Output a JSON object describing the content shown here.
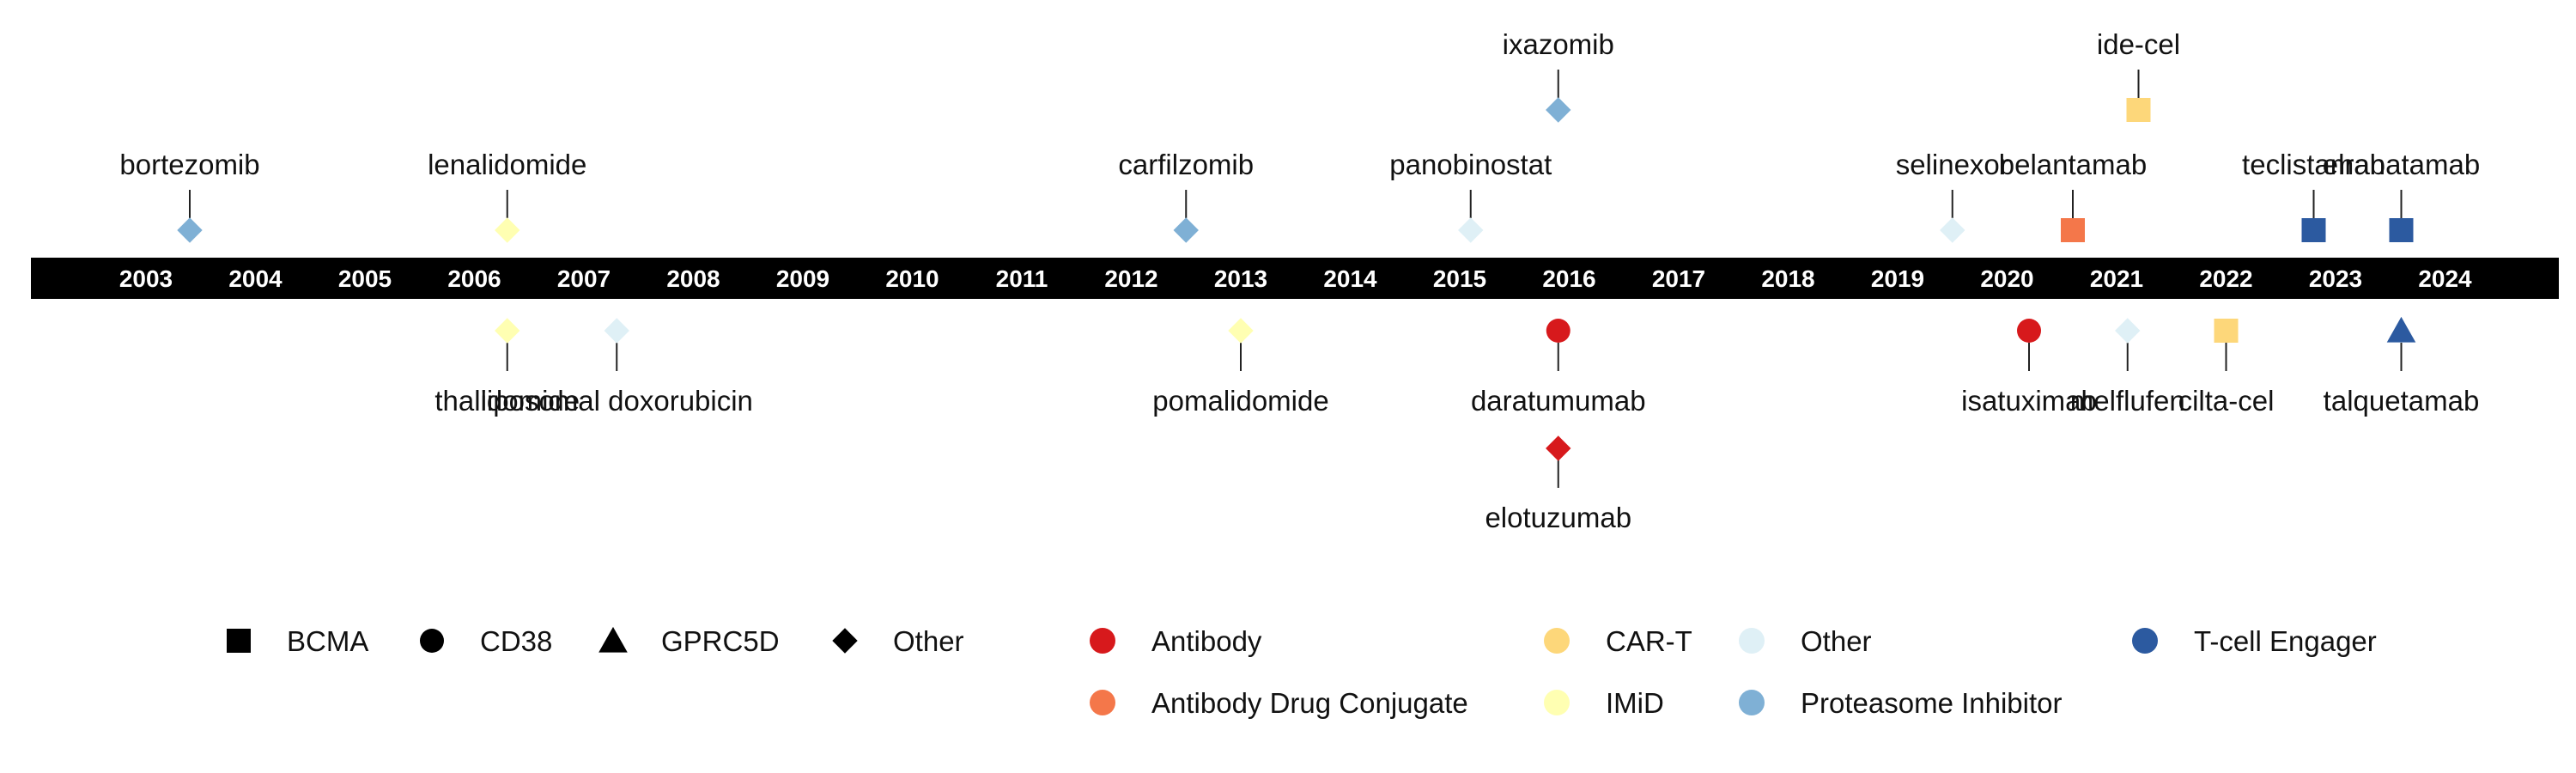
{
  "years": [
    "2003",
    "2004",
    "2005",
    "2006",
    "2007",
    "2008",
    "2009",
    "2010",
    "2011",
    "2012",
    "2013",
    "2014",
    "2015",
    "2016",
    "2017",
    "2018",
    "2019",
    "2020",
    "2021",
    "2022",
    "2023",
    "2024"
  ],
  "axis": {
    "start_year": 2003,
    "end_year": 2024
  },
  "colors": {
    "Antibody": "#d7191c",
    "Antibody Drug Conjugate": "#f4774a",
    "CAR-T": "#fdd77a",
    "IMiD": "#ffffb2",
    "Other": "#dff0f6",
    "Proteasome Inhibitor": "#7fb0d5",
    "T-cell Engager": "#2c5aa0"
  },
  "drugs": [
    {
      "name": "bortezomib",
      "date": 2003.4,
      "side": "above",
      "tier": 1,
      "shape": "diamond",
      "class": "Proteasome Inhibitor"
    },
    {
      "name": "lenalidomide",
      "date": 2006.3,
      "side": "above",
      "tier": 1,
      "shape": "diamond",
      "class": "IMiD"
    },
    {
      "name": "carfilzomib",
      "date": 2012.5,
      "side": "above",
      "tier": 1,
      "shape": "diamond",
      "class": "Proteasome Inhibitor"
    },
    {
      "name": "panobinostat",
      "date": 2015.1,
      "side": "above",
      "tier": 1,
      "shape": "diamond",
      "class": "Other"
    },
    {
      "name": "ixazomib",
      "date": 2015.9,
      "side": "above",
      "tier": 2,
      "shape": "diamond",
      "class": "Proteasome Inhibitor"
    },
    {
      "name": "selinexor",
      "date": 2019.5,
      "side": "above",
      "tier": 1,
      "shape": "diamond",
      "class": "Other"
    },
    {
      "name": "belantamab",
      "date": 2020.6,
      "side": "above",
      "tier": 1,
      "shape": "square",
      "class": "Antibody Drug Conjugate"
    },
    {
      "name": "ide-cel",
      "date": 2021.2,
      "side": "above",
      "tier": 2,
      "shape": "square",
      "class": "CAR-T"
    },
    {
      "name": "teclistamab",
      "date": 2022.8,
      "side": "above",
      "tier": 1,
      "shape": "square",
      "class": "T-cell Engager"
    },
    {
      "name": "elranatamab",
      "date": 2023.6,
      "side": "above",
      "tier": 1,
      "shape": "square",
      "class": "T-cell Engager"
    },
    {
      "name": "thalidomide",
      "date": 2006.3,
      "side": "below",
      "tier": 1,
      "shape": "diamond",
      "class": "IMiD"
    },
    {
      "name": "liposomal doxorubicin",
      "date": 2007.3,
      "side": "below",
      "tier": 1,
      "shape": "diamond",
      "class": "Other"
    },
    {
      "name": "pomalidomide",
      "date": 2013.0,
      "side": "below",
      "tier": 1,
      "shape": "diamond",
      "class": "IMiD"
    },
    {
      "name": "daratumumab",
      "date": 2015.9,
      "side": "below",
      "tier": 1,
      "shape": "circle",
      "class": "Antibody"
    },
    {
      "name": "elotuzumab",
      "date": 2015.9,
      "side": "below",
      "tier": 2,
      "shape": "diamond",
      "class": "Antibody"
    },
    {
      "name": "isatuximab",
      "date": 2020.2,
      "side": "below",
      "tier": 1,
      "shape": "circle",
      "class": "Antibody"
    },
    {
      "name": "melflufen",
      "date": 2021.1,
      "side": "below",
      "tier": 1,
      "shape": "diamond",
      "class": "Other"
    },
    {
      "name": "cilta-cel",
      "date": 2022.0,
      "side": "below",
      "tier": 1,
      "shape": "square",
      "class": "CAR-T"
    },
    {
      "name": "talquetamab",
      "date": 2023.6,
      "side": "below",
      "tier": 1,
      "shape": "triangle",
      "class": "T-cell Engager"
    }
  ],
  "legend": {
    "shapes": [
      {
        "label": "BCMA",
        "shape": "square"
      },
      {
        "label": "CD38",
        "shape": "circle"
      },
      {
        "label": "GPRC5D",
        "shape": "triangle"
      },
      {
        "label": "Other",
        "shape": "diamond"
      }
    ],
    "classes": [
      {
        "label": "Antibody",
        "color": "#d7191c"
      },
      {
        "label": "Antibody Drug Conjugate",
        "color": "#f4774a"
      },
      {
        "label": "CAR-T",
        "color": "#fdd77a"
      },
      {
        "label": "IMiD",
        "color": "#ffffb2"
      },
      {
        "label": "Other",
        "color": "#dff0f6"
      },
      {
        "label": "Proteasome Inhibitor",
        "color": "#7fb0d5"
      },
      {
        "label": "T-cell Engager",
        "color": "#2c5aa0"
      }
    ]
  }
}
